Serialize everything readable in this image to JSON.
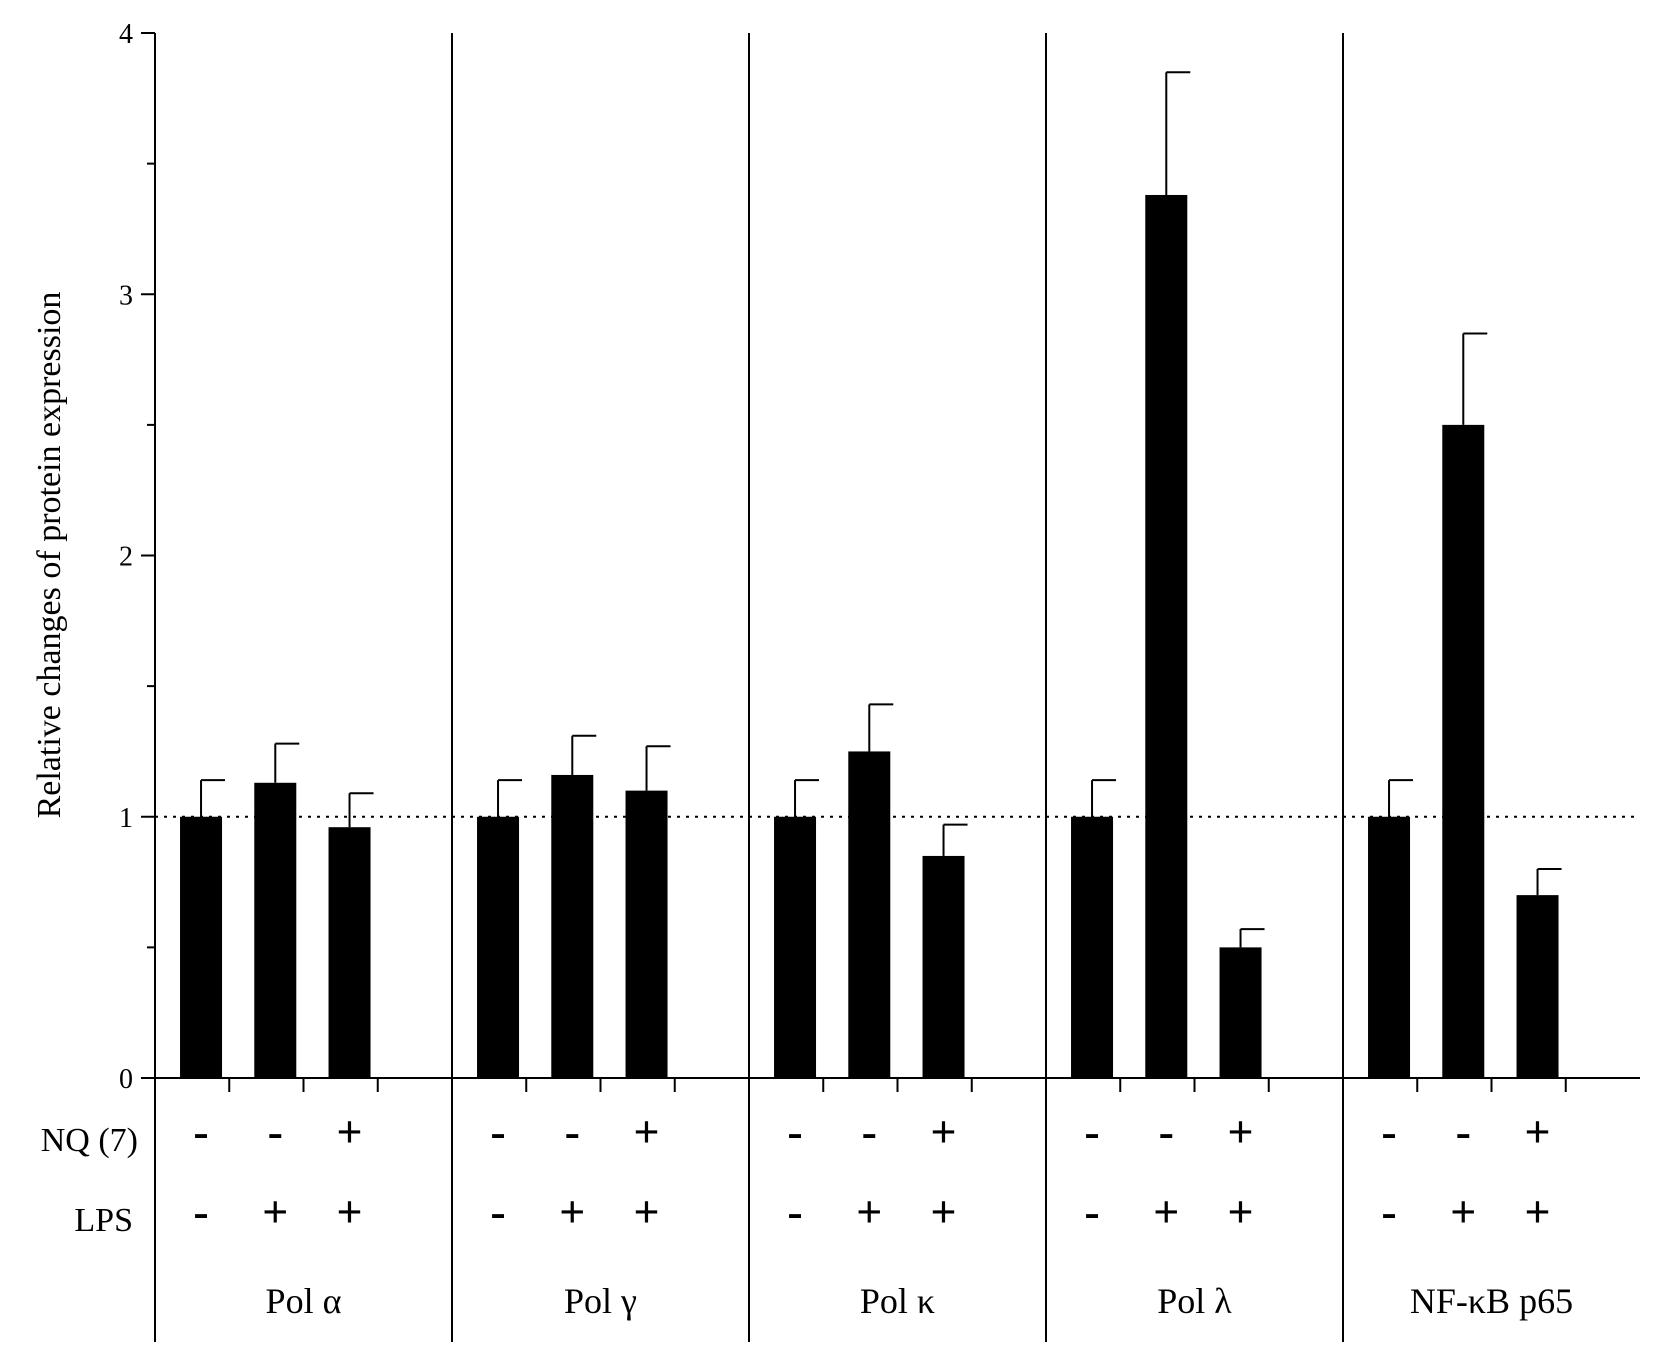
{
  "chart_data": {
    "type": "bar",
    "ylabel": "Relative changes of protein expression",
    "ylim": [
      0,
      4
    ],
    "yticks": [
      "0",
      "1",
      "2",
      "3",
      "4"
    ],
    "reference_line": 1,
    "row_labels": {
      "nq": "NQ (7)",
      "lps": "LPS"
    },
    "groups": [
      {
        "label": "Pol α",
        "bars": [
          {
            "nq": "-",
            "lps": "-",
            "value": 1.0,
            "error": 0.14
          },
          {
            "nq": "-",
            "lps": "+",
            "value": 1.13,
            "error": 0.15
          },
          {
            "nq": "+",
            "lps": "+",
            "value": 0.96,
            "error": 0.13
          }
        ]
      },
      {
        "label": "Pol γ",
        "bars": [
          {
            "nq": "-",
            "lps": "-",
            "value": 1.0,
            "error": 0.14
          },
          {
            "nq": "-",
            "lps": "+",
            "value": 1.16,
            "error": 0.15
          },
          {
            "nq": "+",
            "lps": "+",
            "value": 1.1,
            "error": 0.17
          }
        ]
      },
      {
        "label": "Pol κ",
        "bars": [
          {
            "nq": "-",
            "lps": "-",
            "value": 1.0,
            "error": 0.14
          },
          {
            "nq": "-",
            "lps": "+",
            "value": 1.25,
            "error": 0.18
          },
          {
            "nq": "+",
            "lps": "+",
            "value": 0.85,
            "error": 0.12
          }
        ]
      },
      {
        "label": "Pol λ",
        "bars": [
          {
            "nq": "-",
            "lps": "-",
            "value": 1.0,
            "error": 0.14
          },
          {
            "nq": "-",
            "lps": "+",
            "value": 3.38,
            "error": 0.47
          },
          {
            "nq": "+",
            "lps": "+",
            "value": 0.5,
            "error": 0.07
          }
        ]
      },
      {
        "label": "NF-κB p65",
        "bars": [
          {
            "nq": "-",
            "lps": "-",
            "value": 1.0,
            "error": 0.14
          },
          {
            "nq": "-",
            "lps": "+",
            "value": 2.5,
            "error": 0.35
          },
          {
            "nq": "+",
            "lps": "+",
            "value": 0.7,
            "error": 0.1
          }
        ]
      }
    ]
  }
}
